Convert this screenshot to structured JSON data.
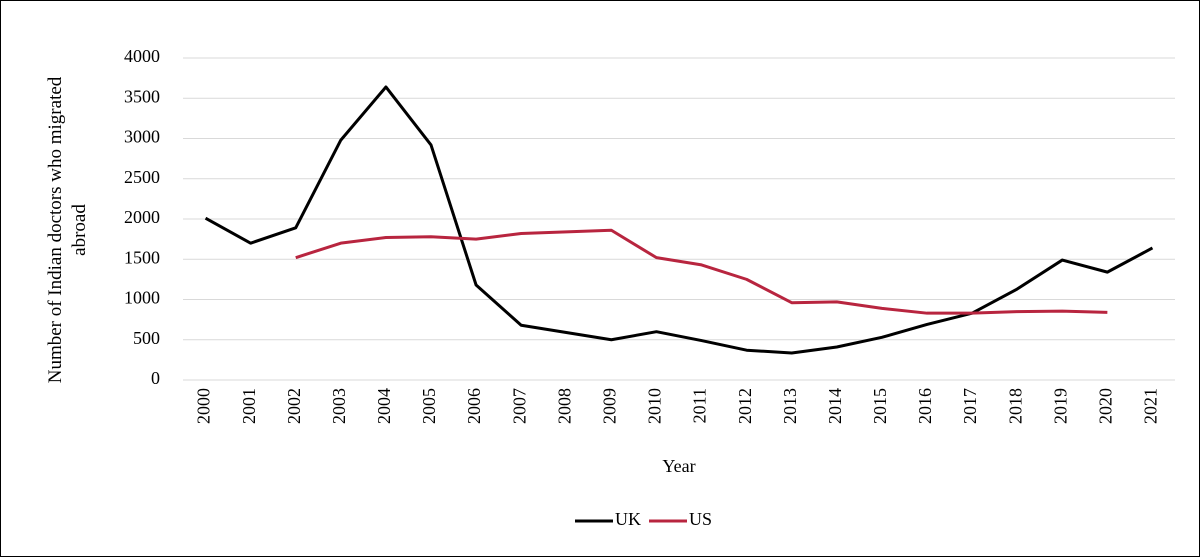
{
  "chart_data": {
    "type": "line",
    "ylabel": "Number of Indian doctors who migrated abroad",
    "xlabel": "Year",
    "categories": [
      "2000",
      "2001",
      "2002",
      "2003",
      "2004",
      "2005",
      "2006",
      "2007",
      "2008",
      "2009",
      "2010",
      "2011",
      "2012",
      "2013",
      "2014",
      "2015",
      "2016",
      "2017",
      "2018",
      "2019",
      "2020",
      "2021"
    ],
    "series": [
      {
        "name": "UK",
        "color": "#000000",
        "values": [
          2010,
          1700,
          1890,
          2980,
          3640,
          2920,
          1180,
          680,
          590,
          500,
          600,
          490,
          370,
          335,
          410,
          530,
          690,
          830,
          1130,
          1490,
          1340,
          1640
        ]
      },
      {
        "name": "US",
        "color": "#b8253f",
        "values": [
          null,
          null,
          1520,
          1700,
          1770,
          1780,
          1750,
          1820,
          1840,
          1860,
          1520,
          1430,
          1250,
          960,
          970,
          890,
          830,
          830,
          850,
          855,
          840,
          null
        ]
      }
    ],
    "ylim": [
      0,
      4000
    ],
    "yticks": [
      0,
      500,
      1000,
      1500,
      2000,
      2500,
      3000,
      3500,
      4000
    ],
    "grid": true,
    "legend": "bottom"
  }
}
